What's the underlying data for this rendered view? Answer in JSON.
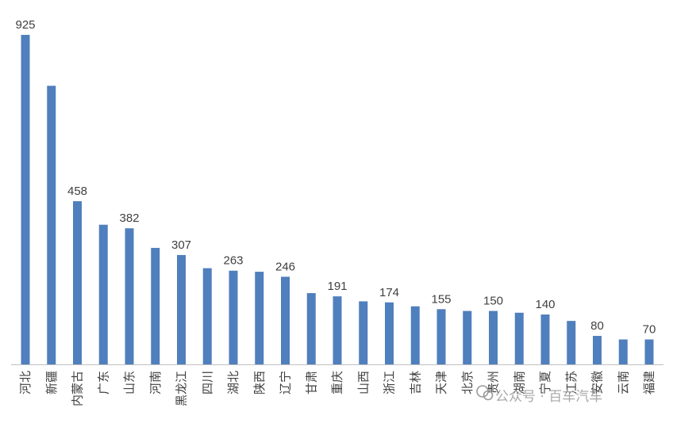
{
  "chart_data": {
    "type": "bar",
    "title": "",
    "xlabel": "",
    "ylabel": "",
    "ylim": [
      0,
      925
    ],
    "grid": false,
    "legend": "none",
    "bar_color": "#4f7fbd",
    "categories": [
      "河北",
      "新疆",
      "内蒙古",
      "广东",
      "山东",
      "河南",
      "黑龙江",
      "四川",
      "湖北",
      "陕西",
      "辽宁",
      "甘肃",
      "重庆",
      "山西",
      "浙江",
      "吉林",
      "天津",
      "北京",
      "贵州",
      "湖南",
      "宁夏",
      "江苏",
      "安徽",
      "云南",
      "福建"
    ],
    "values": [
      925,
      782,
      458,
      392,
      382,
      327,
      307,
      270,
      263,
      260,
      246,
      200,
      191,
      177,
      174,
      163,
      155,
      150,
      150,
      145,
      140,
      122,
      80,
      70,
      70
    ],
    "data_labels": {
      "河北": "925",
      "内蒙古": "458",
      "山东": "382",
      "黑龙江": "307",
      "湖北": "263",
      "辽宁": "246",
      "重庆": "191",
      "浙江": "174",
      "天津": "155",
      "贵州": "150",
      "宁夏": "140",
      "安徽": "80",
      "福建": "70"
    }
  },
  "watermark": {
    "text": "公众号 · 百车汽车",
    "icon": "wechat-icon"
  }
}
